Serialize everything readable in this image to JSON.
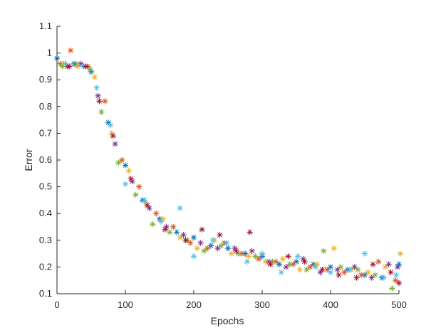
{
  "chart_data": {
    "type": "scatter",
    "title": "",
    "xlabel": "Epochs",
    "ylabel": "Error",
    "xlim": [
      0,
      500
    ],
    "ylim": [
      0.1,
      1.1
    ],
    "xticks": [
      0,
      100,
      200,
      300,
      400,
      500
    ],
    "yticks": [
      0.1,
      0.2,
      0.3,
      0.4,
      0.5,
      0.6,
      0.7,
      0.8,
      0.9,
      1.0,
      1.1
    ],
    "xtick_labels": [
      "0",
      "100",
      "200",
      "300",
      "400",
      "500"
    ],
    "ytick_labels": [
      "0.1",
      "0.2",
      "0.3",
      "0.4",
      "0.5",
      "0.6",
      "0.7",
      "0.8",
      "0.9",
      "1",
      "1.1"
    ],
    "marker": "asterisk",
    "grid": false,
    "legend": "none",
    "series": [
      {
        "color": "#0072BD",
        "x": [
          0,
          25,
          50,
          75,
          100,
          125,
          150,
          175,
          200,
          225,
          250,
          275,
          300,
          325,
          350,
          375,
          400,
          425,
          450,
          475,
          500
        ],
        "y": [
          0.98,
          0.96,
          0.93,
          0.74,
          0.58,
          0.45,
          0.38,
          0.33,
          0.31,
          0.28,
          0.27,
          0.25,
          0.24,
          0.21,
          0.22,
          0.21,
          0.2,
          0.19,
          0.17,
          0.16,
          0.21
        ]
      },
      {
        "color": "#D95319",
        "x": [
          5,
          20,
          45,
          70,
          95,
          120,
          145,
          170,
          195,
          220,
          245,
          270,
          295,
          320,
          345,
          370,
          395,
          420,
          445,
          470,
          495
        ],
        "y": [
          0.96,
          1.01,
          0.95,
          0.82,
          0.6,
          0.5,
          0.4,
          0.35,
          0.29,
          0.27,
          0.29,
          0.25,
          0.23,
          0.22,
          0.21,
          0.2,
          0.19,
          0.18,
          0.17,
          0.22,
          0.15
        ]
      },
      {
        "color": "#EDB120",
        "x": [
          10,
          30,
          55,
          80,
          105,
          130,
          155,
          180,
          205,
          230,
          255,
          280,
          305,
          330,
          355,
          380,
          405,
          430,
          455,
          480,
          502
        ],
        "y": [
          0.96,
          0.95,
          0.91,
          0.7,
          0.56,
          0.44,
          0.38,
          0.31,
          0.27,
          0.3,
          0.25,
          0.24,
          0.22,
          0.23,
          0.19,
          0.21,
          0.27,
          0.19,
          0.18,
          0.2,
          0.25
        ]
      },
      {
        "color": "#7E2F8E",
        "x": [
          15,
          35,
          60,
          85,
          110,
          135,
          160,
          185,
          210,
          235,
          260,
          285,
          310,
          335,
          360,
          385,
          410,
          435,
          460,
          485,
          498
        ],
        "y": [
          0.95,
          0.96,
          0.84,
          0.66,
          0.52,
          0.42,
          0.35,
          0.32,
          0.29,
          0.27,
          0.27,
          0.26,
          0.22,
          0.2,
          0.23,
          0.18,
          0.19,
          0.2,
          0.16,
          0.21,
          0.2
        ]
      },
      {
        "color": "#77AC30",
        "x": [
          8,
          28,
          48,
          65,
          90,
          115,
          140,
          165,
          190,
          215,
          240,
          265,
          290,
          315,
          340,
          365,
          390,
          415,
          440,
          465,
          490
        ],
        "y": [
          0.95,
          0.96,
          0.94,
          0.78,
          0.59,
          0.47,
          0.36,
          0.33,
          0.3,
          0.26,
          0.28,
          0.25,
          0.24,
          0.22,
          0.21,
          0.19,
          0.26,
          0.2,
          0.19,
          0.17,
          0.12
        ]
      },
      {
        "color": "#4DBEEE",
        "x": [
          12,
          38,
          58,
          78,
          100,
          128,
          152,
          180,
          200,
          228,
          248,
          278,
          300,
          328,
          352,
          378,
          400,
          428,
          450,
          478,
          496
        ],
        "y": [
          0.96,
          0.95,
          0.87,
          0.73,
          0.51,
          0.45,
          0.37,
          0.42,
          0.24,
          0.3,
          0.29,
          0.22,
          0.25,
          0.18,
          0.24,
          0.2,
          0.18,
          0.19,
          0.25,
          0.16,
          0.17
        ]
      },
      {
        "color": "#A2142F",
        "x": [
          18,
          42,
          62,
          82,
          108,
          132,
          158,
          188,
          212,
          238,
          262,
          282,
          312,
          338,
          362,
          388,
          412,
          438,
          462,
          488,
          500
        ],
        "y": [
          0.95,
          0.95,
          0.82,
          0.69,
          0.53,
          0.43,
          0.34,
          0.3,
          0.34,
          0.32,
          0.26,
          0.33,
          0.21,
          0.24,
          0.22,
          0.19,
          0.17,
          0.16,
          0.21,
          0.18,
          0.14
        ]
      }
    ]
  }
}
